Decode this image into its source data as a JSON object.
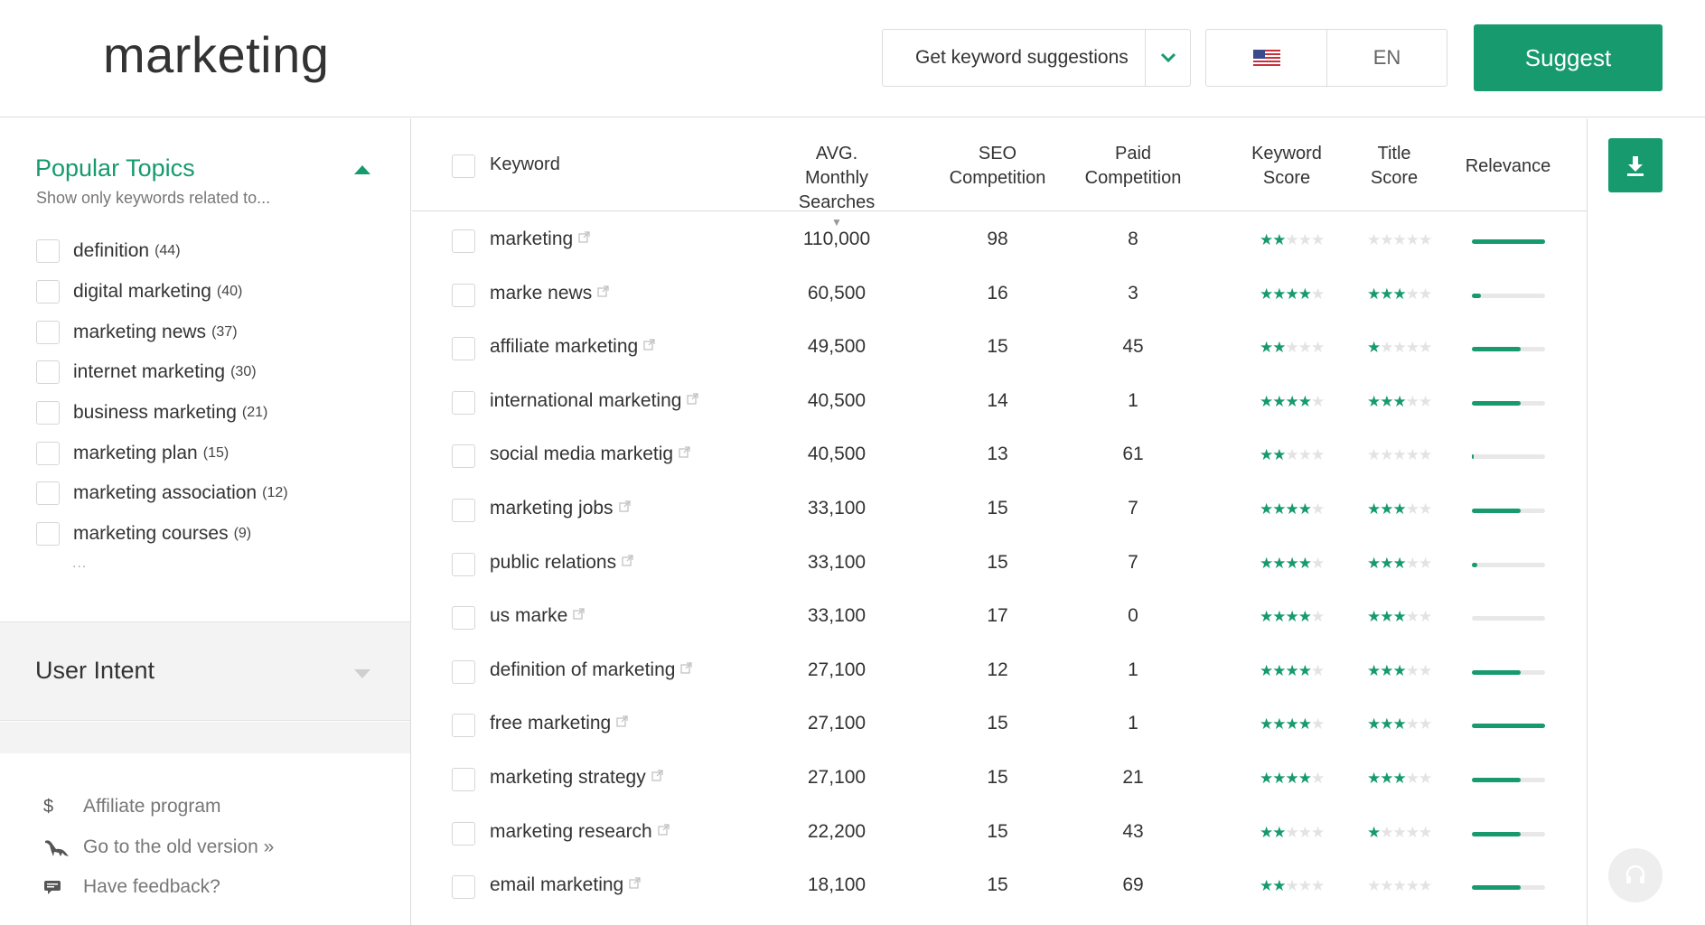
{
  "header": {
    "query": "marketing",
    "mode_label": "Get keyword suggestions",
    "language": "EN",
    "country_flag": "us-flag-icon",
    "suggest_label": "Suggest"
  },
  "colors": {
    "accent": "#169a6e",
    "muted": "#777777",
    "border": "#dcdcdc",
    "panel": "#f3f3f3"
  },
  "sidebar": {
    "topics_title": "Popular Topics",
    "topics_subtitle": "Show only keywords related to...",
    "topics": [
      {
        "label": "definition",
        "count": "(44)"
      },
      {
        "label": "digital marketing",
        "count": "(40)"
      },
      {
        "label": "marketing news",
        "count": "(37)"
      },
      {
        "label": "internet marketing",
        "count": "(30)"
      },
      {
        "label": "business marketing",
        "count": "(21)"
      },
      {
        "label": "marketing plan",
        "count": "(15)"
      },
      {
        "label": "marketing association",
        "count": "(12)"
      },
      {
        "label": "marketing courses",
        "count": "(9)"
      }
    ],
    "topics_more": "...",
    "intent_title": "User Intent",
    "footer_links": [
      {
        "icon": "dollar-icon",
        "label": "Affiliate program"
      },
      {
        "icon": "dinosaur-icon",
        "label": "Go to the old version »"
      },
      {
        "icon": "feedback-icon",
        "label": "Have feedback?"
      }
    ]
  },
  "table": {
    "columns": {
      "keyword": "Keyword",
      "avg_line1": "AVG.",
      "avg_line2": "Monthly Searches",
      "seo_line1": "SEO",
      "seo_line2": "Competition",
      "paid_line1": "Paid",
      "paid_line2": "Competition",
      "ks_line1": "Keyword",
      "ks_line2": "Score",
      "ts_line1": "Title",
      "ts_line2": "Score",
      "relevance": "Relevance"
    },
    "rows": [
      {
        "keyword": "marketing",
        "avg": "110,000",
        "seo": "98",
        "paid": "8",
        "keyword_score": 2,
        "title_score": 0,
        "relevance": 1.0
      },
      {
        "keyword": "marke news",
        "avg": "60,500",
        "seo": "16",
        "paid": "3",
        "keyword_score": 4,
        "title_score": 3,
        "relevance": 0.12
      },
      {
        "keyword": "affiliate marketing",
        "avg": "49,500",
        "seo": "15",
        "paid": "45",
        "keyword_score": 2,
        "title_score": 1,
        "relevance": 0.67
      },
      {
        "keyword": "international marketing",
        "avg": "40,500",
        "seo": "14",
        "paid": "1",
        "keyword_score": 4,
        "title_score": 3,
        "relevance": 0.67
      },
      {
        "keyword": "social media marketig",
        "avg": "40,500",
        "seo": "13",
        "paid": "61",
        "keyword_score": 2,
        "title_score": 0,
        "relevance": 0.02
      },
      {
        "keyword": "marketing jobs",
        "avg": "33,100",
        "seo": "15",
        "paid": "7",
        "keyword_score": 4,
        "title_score": 3,
        "relevance": 0.67
      },
      {
        "keyword": "public relations",
        "avg": "33,100",
        "seo": "15",
        "paid": "7",
        "keyword_score": 4,
        "title_score": 3,
        "relevance": 0.07
      },
      {
        "keyword": "us marke",
        "avg": "33,100",
        "seo": "17",
        "paid": "0",
        "keyword_score": 4,
        "title_score": 3,
        "relevance": 0.0
      },
      {
        "keyword": "definition of marketing",
        "avg": "27,100",
        "seo": "12",
        "paid": "1",
        "keyword_score": 4,
        "title_score": 3,
        "relevance": 0.67
      },
      {
        "keyword": "free marketing",
        "avg": "27,100",
        "seo": "15",
        "paid": "1",
        "keyword_score": 4,
        "title_score": 3,
        "relevance": 1.0
      },
      {
        "keyword": "marketing strategy",
        "avg": "27,100",
        "seo": "15",
        "paid": "21",
        "keyword_score": 4,
        "title_score": 3,
        "relevance": 0.67
      },
      {
        "keyword": "marketing research",
        "avg": "22,200",
        "seo": "15",
        "paid": "43",
        "keyword_score": 2,
        "title_score": 1,
        "relevance": 0.67
      },
      {
        "keyword": "email marketing",
        "avg": "18,100",
        "seo": "15",
        "paid": "69",
        "keyword_score": 2,
        "title_score": 0,
        "relevance": 0.67
      }
    ]
  }
}
